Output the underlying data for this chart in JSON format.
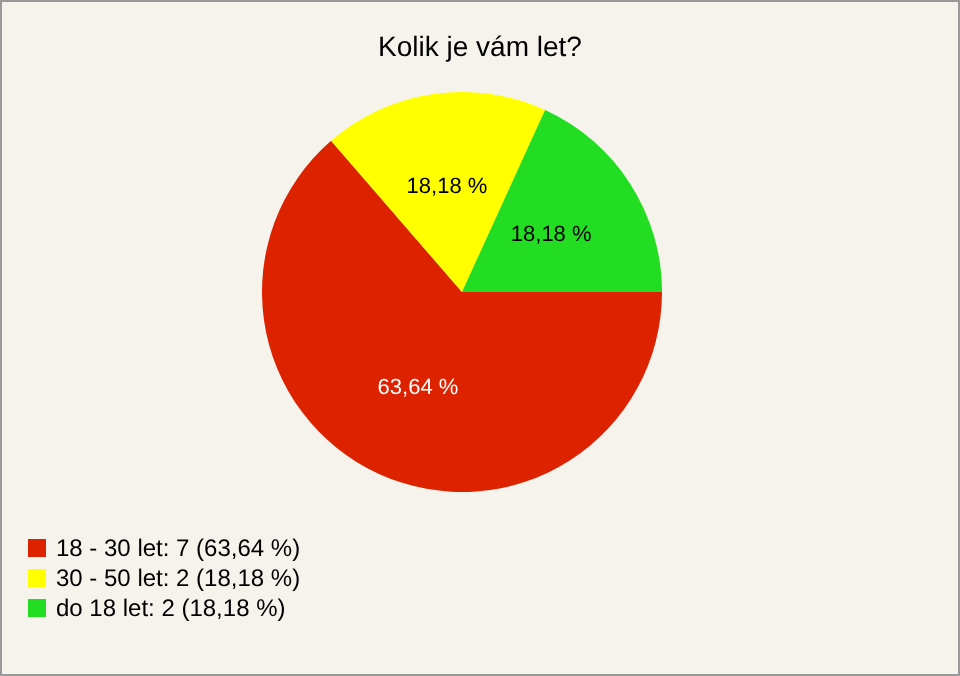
{
  "chart_data": {
    "type": "pie",
    "title": "Kolik je vám let?",
    "categories": [
      "18 - 30 let: 7 (63,64 %)",
      "30 - 50 let: 2 (18,18 %)",
      "do 18 let: 2 (18,18 %)"
    ],
    "values": [
      63.64,
      18.18,
      18.18
    ],
    "colors": [
      "#dd2200",
      "#ffff00",
      "#22dd22"
    ],
    "value_labels": [
      "63,64 %",
      "18,18 %",
      "18,18 %"
    ],
    "legend": "bottom left"
  }
}
